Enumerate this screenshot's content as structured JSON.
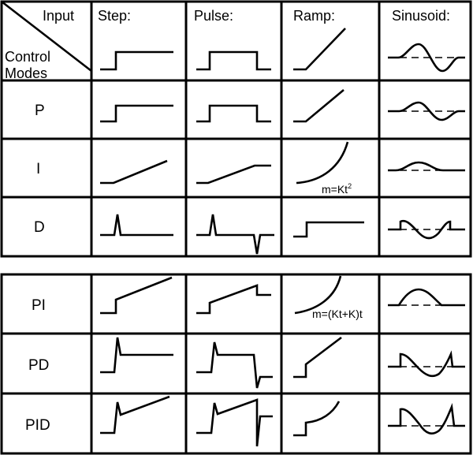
{
  "header": {
    "corner_input": "Input",
    "corner_control": "Control",
    "corner_modes": "Modes",
    "columns": [
      "Step:",
      "Pulse:",
      "Ramp:",
      "Sinusoid:"
    ]
  },
  "rows": [
    "P",
    "I",
    "D",
    "PI",
    "PD",
    "PID"
  ],
  "annotations": {
    "i_ramp": "m=Kt",
    "i_ramp_exp": "2",
    "pi_ramp": "m=(Kt+K)t"
  }
}
